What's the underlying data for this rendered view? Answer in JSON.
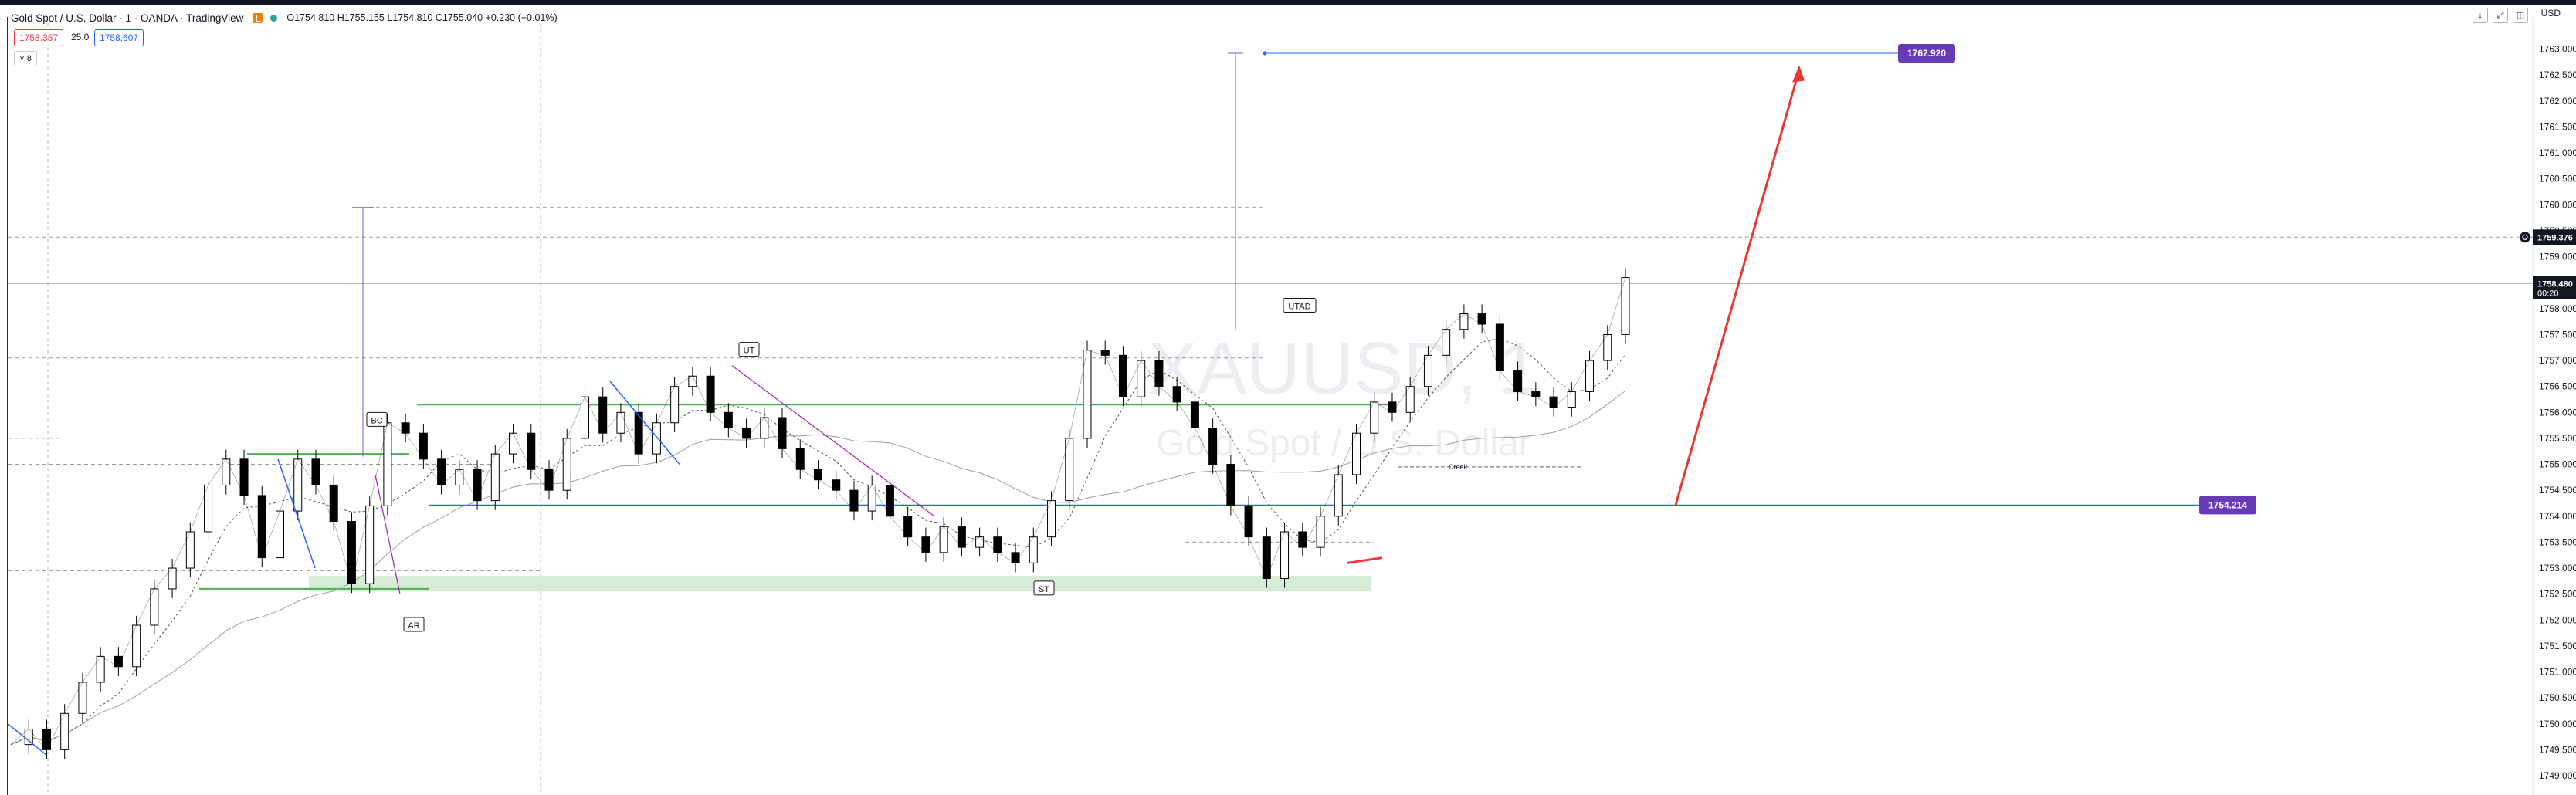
{
  "header": {
    "symbol": "Gold Spot / U.S. Dollar · 1 · OANDA · TradingView",
    "ohlc": "O1754.810 H1755.155 L1754.810 C1755.040 +0.230 (+0.01%)",
    "bid": "1758.357",
    "spread": "25.0",
    "ask": "1758.607",
    "collapse": "8",
    "currency": "USD"
  },
  "toolbar": {
    "icons": [
      "arrow-down-icon",
      "expand-icon",
      "restore-icon"
    ]
  },
  "watermark": {
    "symbol": "XAUUSD, 1",
    "name": "Gold Spot / U.S. Dollar"
  },
  "chart_data": {
    "type": "line",
    "instrument": "Gold Spot / U.S. Dollar",
    "timeframe": "1",
    "ylim": [
      1749.0,
      1763.5
    ],
    "yticks": [
      "1763.000",
      "1762.500",
      "1762.000",
      "1761.500",
      "1761.000",
      "1760.500",
      "1760.000",
      "1759.500",
      "1759.000",
      "1758.500",
      "1758.000",
      "1757.500",
      "1757.000",
      "1756.500",
      "1756.000",
      "1755.500",
      "1755.000",
      "1754.500",
      "1754.000",
      "1753.500",
      "1753.000",
      "1752.500",
      "1752.000",
      "1751.500",
      "1751.000",
      "1750.500",
      "1750.000",
      "1749.500",
      "1749.000"
    ],
    "price_labels": [
      {
        "value": "1762.920",
        "color": "#673ab7"
      },
      {
        "value": "1754.214",
        "color": "#673ab7"
      },
      {
        "value": "1759.376",
        "color": "#131722"
      },
      {
        "value": "1758.480",
        "color": "#131722",
        "sub": "00:20"
      }
    ],
    "annotations": [
      {
        "text": "BC",
        "price": 1755.85
      },
      {
        "text": "AR",
        "price": 1751.9
      },
      {
        "text": "UT",
        "price": 1757.2
      },
      {
        "text": "UTAD",
        "price": 1758.05
      },
      {
        "text": "ST",
        "price": 1752.6
      },
      {
        "text": "Creek",
        "price": 1754.95
      }
    ],
    "levels": {
      "resistance": 1756.15,
      "support_zone": [
        1752.55,
        1752.85
      ],
      "bc_top": 1755.2,
      "ar_bottom": 1752.6,
      "target_1": 1759.95,
      "target_2": 1762.92,
      "dashed_1": 1759.376,
      "current": 1758.48,
      "blue_line": 1754.214
    },
    "price_path": [
      1749.6,
      1749.9,
      1749.5,
      1750.2,
      1750.8,
      1751.3,
      1751.1,
      1751.9,
      1752.6,
      1753.0,
      1753.7,
      1754.6,
      1755.1,
      1754.4,
      1753.2,
      1754.1,
      1755.1,
      1754.6,
      1753.9,
      1752.7,
      1754.2,
      1755.8,
      1755.6,
      1755.1,
      1754.6,
      1754.9,
      1754.3,
      1755.2,
      1755.6,
      1754.9,
      1754.5,
      1755.5,
      1756.3,
      1755.6,
      1756.0,
      1755.2,
      1755.8,
      1756.5,
      1756.7,
      1756.0,
      1755.7,
      1755.5,
      1755.9,
      1755.3,
      1754.9,
      1754.7,
      1754.5,
      1754.1,
      1754.6,
      1754.0,
      1753.6,
      1753.3,
      1753.8,
      1753.4,
      1753.6,
      1753.3,
      1753.1,
      1753.6,
      1754.3,
      1755.5,
      1757.2,
      1757.1,
      1756.3,
      1757.0,
      1756.5,
      1756.2,
      1755.7,
      1755.0,
      1754.2,
      1753.6,
      1752.8,
      1753.7,
      1753.4,
      1754.0,
      1754.8,
      1755.6,
      1756.2,
      1756.0,
      1756.5,
      1757.1,
      1757.6,
      1757.9,
      1757.7,
      1756.8,
      1756.4,
      1756.3,
      1756.1,
      1756.4,
      1757.0,
      1757.5,
      1758.6
    ]
  }
}
